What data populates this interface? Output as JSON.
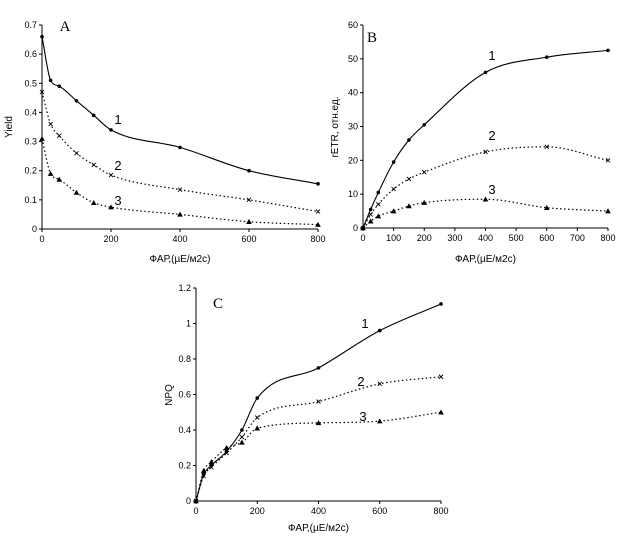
{
  "chart_data": [
    {
      "type": "line",
      "panel_label": "A",
      "xlabel": "ФАР,(µE/м2с)",
      "ylabel": "Yield",
      "xlim": [
        0,
        800
      ],
      "ylim": [
        0,
        0.7
      ],
      "xticks": [
        0,
        200,
        400,
        600,
        800
      ],
      "yticks": [
        0,
        0.1,
        0.2,
        0.3,
        0.4,
        0.5,
        0.6,
        0.7
      ],
      "ytick_labels": [
        "0",
        "0.1",
        "0.2",
        "0.3",
        "0.4",
        "0.5",
        "0.6",
        "0.7"
      ],
      "grid": false,
      "series": [
        {
          "name": "1",
          "style": "solid",
          "marker": "dot",
          "x": [
            0,
            25,
            50,
            100,
            150,
            200,
            400,
            600,
            800
          ],
          "y": [
            0.66,
            0.51,
            0.49,
            0.44,
            0.39,
            0.34,
            0.28,
            0.2,
            0.155
          ]
        },
        {
          "name": "2",
          "style": "dotted",
          "marker": "cross",
          "x": [
            0,
            25,
            50,
            100,
            150,
            200,
            400,
            600,
            800
          ],
          "y": [
            0.47,
            0.36,
            0.32,
            0.26,
            0.22,
            0.185,
            0.135,
            0.1,
            0.06
          ]
        },
        {
          "name": "3",
          "style": "dotted",
          "marker": "triangle",
          "x": [
            0,
            25,
            50,
            100,
            150,
            200,
            400,
            600,
            800
          ],
          "y": [
            0.31,
            0.19,
            0.17,
            0.125,
            0.09,
            0.075,
            0.05,
            0.025,
            0.015
          ]
        }
      ]
    },
    {
      "type": "line",
      "panel_label": "B",
      "xlabel": "ФАР,(µE/м2с)",
      "ylabel": "rETR, отн.ед.",
      "xlim": [
        0,
        800
      ],
      "ylim": [
        0,
        60
      ],
      "xticks": [
        0,
        100,
        200,
        300,
        400,
        500,
        600,
        700,
        800
      ],
      "yticks": [
        0,
        10,
        20,
        30,
        40,
        50,
        60
      ],
      "ytick_labels": [
        "0",
        "10",
        "20",
        "30",
        "40",
        "50",
        "60"
      ],
      "grid": false,
      "series": [
        {
          "name": "1",
          "style": "solid",
          "marker": "dot",
          "x": [
            0,
            25,
            50,
            100,
            150,
            200,
            400,
            600,
            800
          ],
          "y": [
            0,
            5.5,
            10.5,
            19.5,
            26,
            30.5,
            46,
            50.5,
            52.5
          ]
        },
        {
          "name": "2",
          "style": "dotted",
          "marker": "cross",
          "x": [
            0,
            25,
            50,
            100,
            150,
            200,
            400,
            600,
            800
          ],
          "y": [
            0,
            4,
            7,
            11.5,
            14.5,
            16.5,
            22.5,
            24,
            20
          ]
        },
        {
          "name": "3",
          "style": "dotted",
          "marker": "triangle",
          "x": [
            0,
            25,
            50,
            100,
            150,
            200,
            400,
            600,
            800
          ],
          "y": [
            0,
            2,
            3.5,
            5,
            6.5,
            7.5,
            8.5,
            6,
            5
          ]
        }
      ]
    },
    {
      "type": "line",
      "panel_label": "C",
      "xlabel": "ФАР,(µE/м2с)",
      "ylabel": "NPQ",
      "xlim": [
        0,
        800
      ],
      "ylim": [
        0,
        1.2
      ],
      "xticks": [
        0,
        200,
        400,
        600,
        800
      ],
      "yticks": [
        0,
        0.2,
        0.4,
        0.6,
        0.8,
        1,
        1.2
      ],
      "ytick_labels": [
        "0",
        "0.2",
        "0.4",
        "0.6",
        "0.8",
        "1",
        "1.2"
      ],
      "grid": false,
      "series": [
        {
          "name": "1",
          "style": "solid",
          "marker": "dot",
          "x": [
            0,
            25,
            50,
            100,
            150,
            200,
            400,
            600,
            800
          ],
          "y": [
            0,
            0.15,
            0.2,
            0.28,
            0.4,
            0.58,
            0.75,
            0.96,
            1.11
          ]
        },
        {
          "name": "2",
          "style": "dotted",
          "marker": "cross",
          "x": [
            0,
            25,
            50,
            100,
            150,
            200,
            400,
            600,
            800
          ],
          "y": [
            0,
            0.14,
            0.19,
            0.27,
            0.36,
            0.47,
            0.56,
            0.66,
            0.7
          ]
        },
        {
          "name": "3",
          "style": "dotted",
          "marker": "triangle",
          "x": [
            0,
            25,
            50,
            100,
            150,
            200,
            400,
            600,
            800
          ],
          "y": [
            0,
            0.17,
            0.22,
            0.3,
            0.33,
            0.41,
            0.44,
            0.45,
            0.5
          ]
        }
      ]
    }
  ]
}
